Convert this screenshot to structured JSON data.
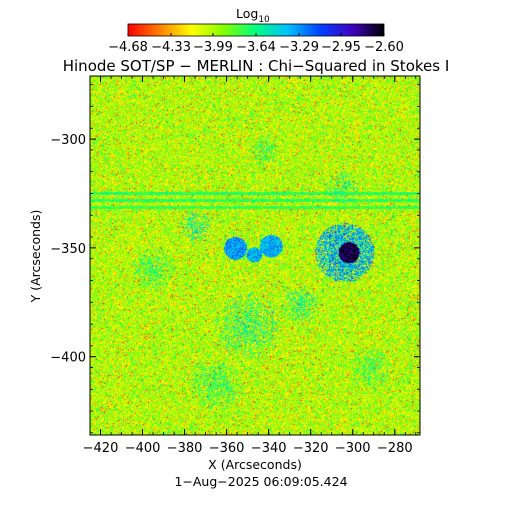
{
  "chart_data": {
    "type": "heatmap",
    "title": "Hinode SOT/SP − MERLIN : Chi−Squared in Stokes I",
    "xlabel": "X (Arcseconds)",
    "ylabel": "Y (Arcseconds)",
    "timestamp": "1−Aug−2025 06:09:05.424",
    "xlim": [
      -425,
      -268
    ],
    "ylim": [
      -436,
      -271
    ],
    "x_ticks": [
      -420,
      -400,
      -380,
      -360,
      -340,
      -320,
      -300,
      -280
    ],
    "x_tick_labels": [
      "−420",
      "−400",
      "−380",
      "−360",
      "−340",
      "−320",
      "−300",
      "−280"
    ],
    "y_ticks": [
      -300,
      -350,
      -400
    ],
    "y_tick_labels": [
      "−300",
      "−350",
      "−400"
    ],
    "colorbar": {
      "label_base": "Log",
      "label_sub": "10",
      "range": [
        -4.68,
        -2.6
      ],
      "ticks": [
        -4.68,
        -4.33,
        -3.99,
        -3.64,
        -3.29,
        -2.95,
        -2.6
      ],
      "tick_labels": [
        "−4.68",
        "−4.33",
        "−3.99",
        "−3.64",
        "−3.29",
        "−2.95",
        "−2.60"
      ],
      "colormap": [
        "#ff0000",
        "#ff8000",
        "#ffff00",
        "#80ff00",
        "#00ff80",
        "#00c0ff",
        "#0040ff",
        "#4000c0",
        "#000000"
      ]
    },
    "field": {
      "background_level": -4.0,
      "noise_amplitude": 0.3,
      "features": [
        {
          "kind": "sunspot-umbra",
          "x": -302,
          "y": -352,
          "radius": 5,
          "level": -2.7
        },
        {
          "kind": "sunspot-penumbra",
          "x": -304,
          "y": -352,
          "radius": 14,
          "level": -3.35
        },
        {
          "kind": "pore",
          "x": -339,
          "y": -349,
          "radius": 3,
          "level": -3.35
        },
        {
          "kind": "pore",
          "x": -356,
          "y": -350,
          "radius": 3,
          "level": -3.3
        },
        {
          "kind": "pore",
          "x": -347,
          "y": -353,
          "radius": 2,
          "level": -3.35
        },
        {
          "kind": "plage",
          "x": -375,
          "y": -340,
          "radius": 8,
          "level": -3.55
        },
        {
          "kind": "plage",
          "x": -350,
          "y": -386,
          "radius": 16,
          "level": -3.6
        },
        {
          "kind": "plage",
          "x": -395,
          "y": -360,
          "radius": 10,
          "level": -3.65
        },
        {
          "kind": "plage",
          "x": -365,
          "y": -413,
          "radius": 12,
          "level": -3.65
        },
        {
          "kind": "plage",
          "x": -325,
          "y": -376,
          "radius": 9,
          "level": -3.6
        },
        {
          "kind": "plage",
          "x": -305,
          "y": -322,
          "radius": 8,
          "level": -3.65
        },
        {
          "kind": "plage",
          "x": -342,
          "y": -305,
          "radius": 7,
          "level": -3.7
        },
        {
          "kind": "plage",
          "x": -292,
          "y": -405,
          "radius": 10,
          "level": -3.7
        }
      ],
      "horizontal_streaks": [
        {
          "y": -325,
          "level": -3.7
        },
        {
          "y": -328,
          "level": -3.72
        },
        {
          "y": -331,
          "level": -3.75
        }
      ]
    }
  }
}
